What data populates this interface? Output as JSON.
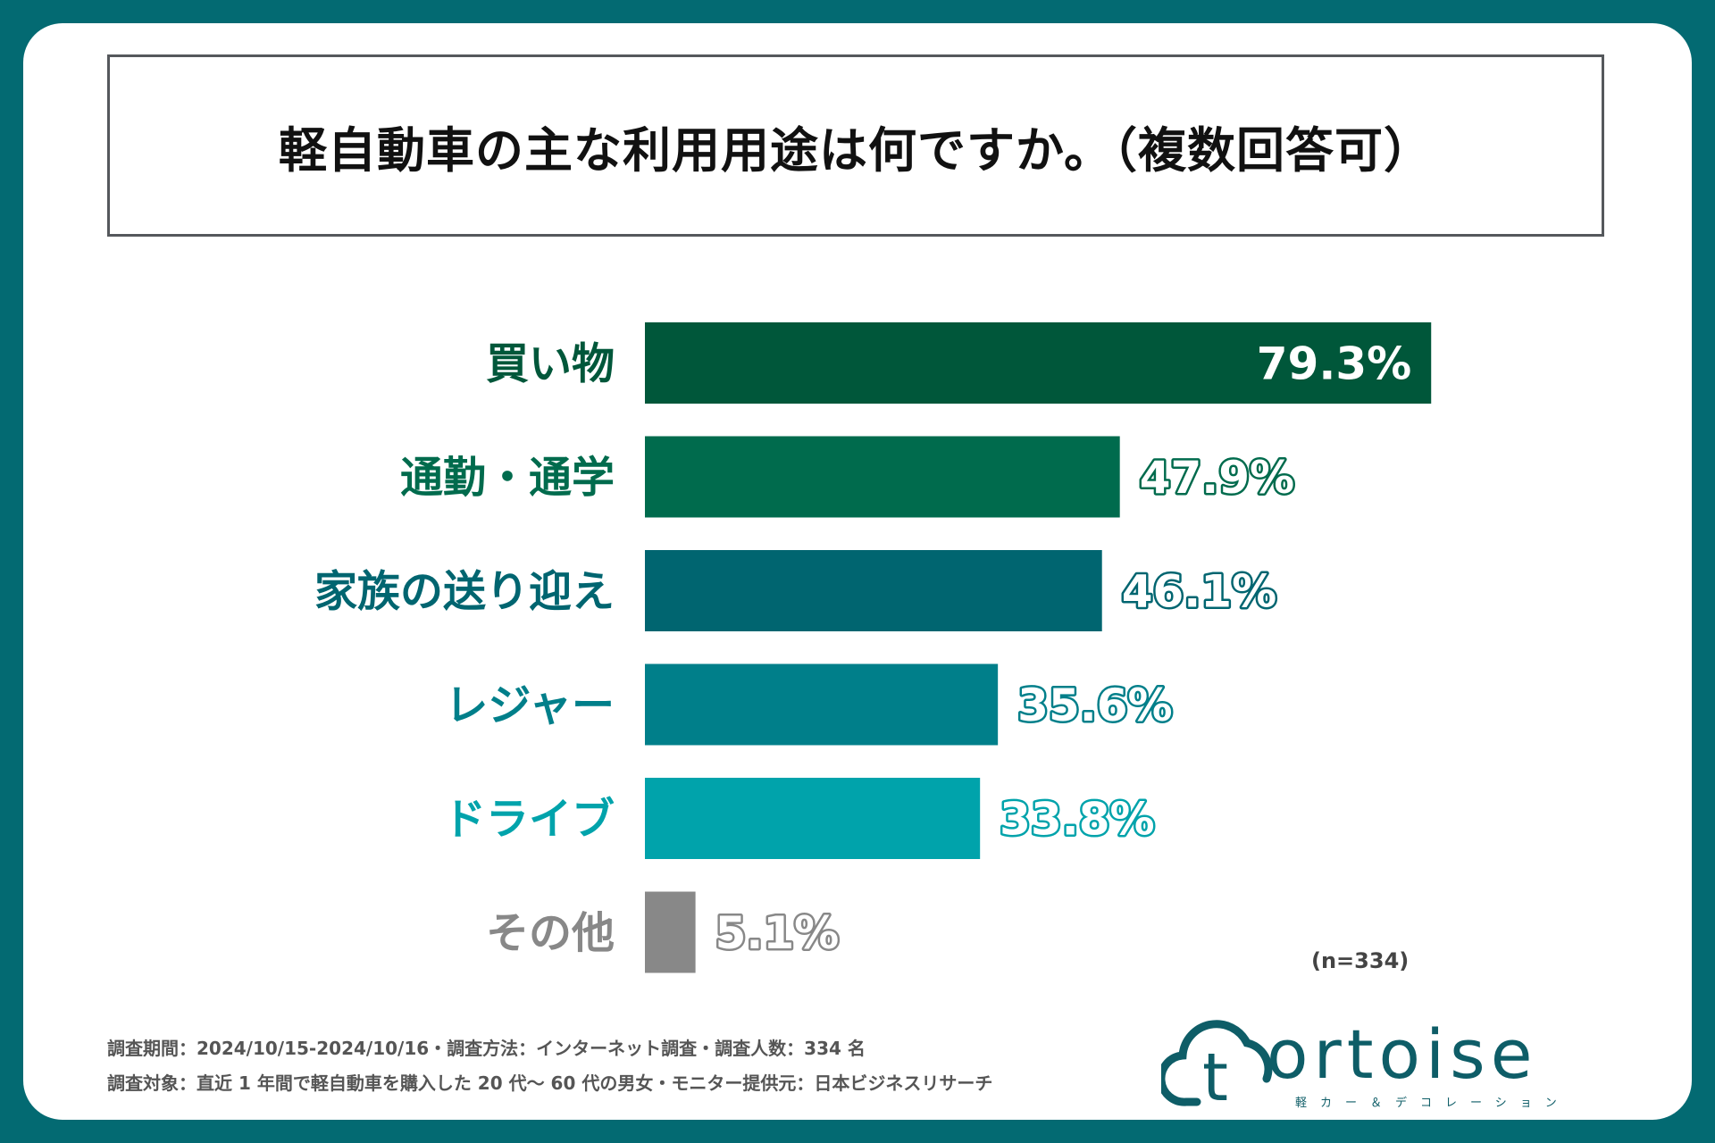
{
  "chart_data": {
    "type": "bar",
    "orientation": "horizontal",
    "title": "軽自動車の主な利用用途は何ですか。（複数回答可）",
    "categories": [
      "買い物",
      "通勤・通学",
      "家族の送り迎え",
      "レジャー",
      "ドライブ",
      "その他"
    ],
    "values": [
      79.3,
      47.9,
      46.1,
      35.6,
      33.8,
      5.1
    ],
    "value_labels": [
      "79.3%",
      "47.9%",
      "46.1%",
      "35.6%",
      "33.8%",
      "5.1%"
    ],
    "colors": [
      "#00573a",
      "#006b4d",
      "#006570",
      "#007f8a",
      "#00a3ab",
      "#888888"
    ],
    "xlim": [
      0,
      100
    ],
    "unit": "%",
    "note": "(n=334)"
  },
  "footer": {
    "line1": "調査期間：2024/10/15-2024/10/16・調査方法：インターネット調査・調査人数：334 名",
    "line2": "調査対象：直近 1 年間で軽自動車を購入した 20 代〜 60 代の男女・モニター提供元：日本ビジネスリサーチ"
  },
  "logo": {
    "word": "ortoise",
    "tagline": "軽カー＆デコレーション",
    "letter_icon": "t",
    "color": "#0e5d67"
  }
}
